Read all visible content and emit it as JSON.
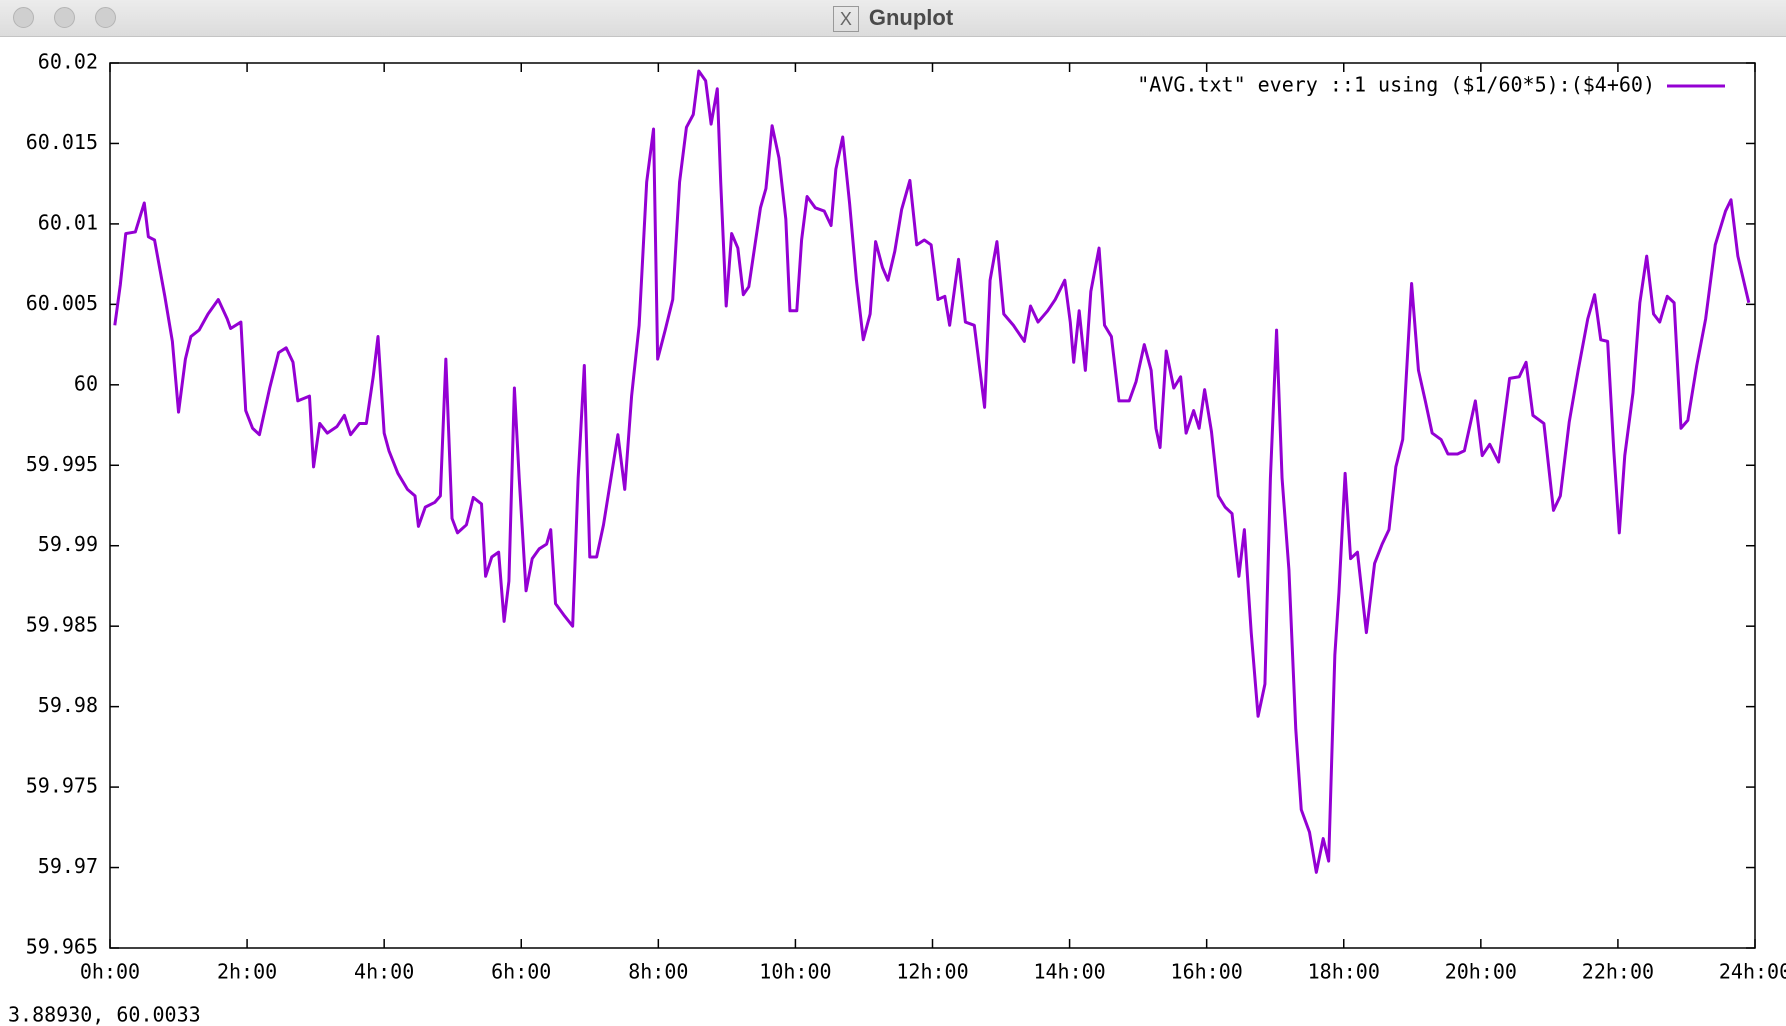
{
  "window": {
    "title": "Gnuplot",
    "status": "3.88930,  60.0033"
  },
  "chart_data": {
    "type": "line",
    "x": [
      0.07,
      0.15,
      0.23,
      0.37,
      0.5,
      0.56,
      0.65,
      0.8,
      0.91,
      1.0,
      1.1,
      1.18,
      1.3,
      1.43,
      1.58,
      1.71,
      1.76,
      1.91,
      1.98,
      2.08,
      2.18,
      2.33,
      2.46,
      2.57,
      2.67,
      2.74,
      2.91,
      2.97,
      3.06,
      3.17,
      3.31,
      3.42,
      3.51,
      3.64,
      3.74,
      3.84,
      3.91,
      4.0,
      4.07,
      4.2,
      4.34,
      4.45,
      4.5,
      4.6,
      4.74,
      4.82,
      4.9,
      4.99,
      5.07,
      5.2,
      5.3,
      5.42,
      5.48,
      5.57,
      5.67,
      5.75,
      5.82,
      5.9,
      5.97,
      6.07,
      6.16,
      6.26,
      6.37,
      6.43,
      6.5,
      6.62,
      6.75,
      6.83,
      6.92,
      7.0,
      7.1,
      7.2,
      7.32,
      7.41,
      7.51,
      7.61,
      7.72,
      7.83,
      7.93,
      7.99,
      8.1,
      8.21,
      8.31,
      8.41,
      8.51,
      8.59,
      8.69,
      8.77,
      8.86,
      8.91,
      8.99,
      9.07,
      9.16,
      9.24,
      9.32,
      9.41,
      9.49,
      9.57,
      9.66,
      9.76,
      9.86,
      9.92,
      10.02,
      10.09,
      10.17,
      10.29,
      10.42,
      10.52,
      10.59,
      10.69,
      10.79,
      10.89,
      10.99,
      11.09,
      11.17,
      11.27,
      11.35,
      11.45,
      11.55,
      11.67,
      11.77,
      11.88,
      11.98,
      12.08,
      12.18,
      12.25,
      12.38,
      12.48,
      12.61,
      12.76,
      12.84,
      12.94,
      13.04,
      13.18,
      13.34,
      13.43,
      13.54,
      13.68,
      13.79,
      13.93,
      14.01,
      14.06,
      14.14,
      14.23,
      14.31,
      14.43,
      14.51,
      14.61,
      14.72,
      14.87,
      14.97,
      15.09,
      15.19,
      15.26,
      15.32,
      15.41,
      15.52,
      15.62,
      15.7,
      15.81,
      15.89,
      15.97,
      16.07,
      16.17,
      16.27,
      16.37,
      16.47,
      16.55,
      16.65,
      16.75,
      16.85,
      16.93,
      17.02,
      17.1,
      17.2,
      17.3,
      17.38,
      17.5,
      17.6,
      17.7,
      17.78,
      17.87,
      17.93,
      18.02,
      18.1,
      18.2,
      18.33,
      18.45,
      18.56,
      18.66,
      18.76,
      18.86,
      18.99,
      19.09,
      19.19,
      19.29,
      19.42,
      19.52,
      19.66,
      19.76,
      19.92,
      20.02,
      20.13,
      20.26,
      20.42,
      20.56,
      20.66,
      20.76,
      20.92,
      21.06,
      21.16,
      21.29,
      21.42,
      21.56,
      21.66,
      21.75,
      21.85,
      21.94,
      22.02,
      22.1,
      22.22,
      22.32,
      22.42,
      22.52,
      22.61,
      22.72,
      22.82,
      22.92,
      23.02,
      23.15,
      23.28,
      23.42,
      23.57,
      23.65,
      23.75,
      23.91
    ],
    "series": [
      {
        "name": "\"AVG.txt\" every ::1 using ($1/60*5):($4+60)",
        "color": "#9400d3",
        "values": [
          60.0037,
          60.0062,
          60.0094,
          60.0095,
          60.0113,
          60.0092,
          60.009,
          60.0055,
          60.0027,
          59.9983,
          60.0016,
          60.003,
          60.0034,
          60.0044,
          60.0053,
          60.0041,
          60.0035,
          60.0039,
          59.9984,
          59.9973,
          59.9969,
          59.9998,
          60.002,
          60.0023,
          60.0014,
          59.999,
          59.9993,
          59.9949,
          59.9976,
          59.997,
          59.9974,
          59.9981,
          59.9969,
          59.9976,
          59.9976,
          60.0005,
          60.003,
          59.997,
          59.9959,
          59.9945,
          59.9935,
          59.9931,
          59.9912,
          59.9924,
          59.9927,
          59.9931,
          60.0016,
          59.9917,
          59.9908,
          59.9913,
          59.993,
          59.9926,
          59.9881,
          59.9893,
          59.9896,
          59.9853,
          59.9878,
          59.9998,
          59.9942,
          59.9872,
          59.9892,
          59.9898,
          59.9901,
          59.991,
          59.9864,
          59.9857,
          59.985,
          59.9942,
          60.0012,
          59.9893,
          59.9893,
          59.9913,
          59.9945,
          59.9969,
          59.9935,
          59.9993,
          60.0037,
          60.0126,
          60.0159,
          60.0016,
          60.0034,
          60.0053,
          60.0126,
          60.016,
          60.0168,
          60.0195,
          60.0189,
          60.0162,
          60.0184,
          60.0126,
          60.0049,
          60.0094,
          60.0085,
          60.0056,
          60.0061,
          60.0087,
          60.011,
          60.0122,
          60.0161,
          60.0141,
          60.0103,
          60.0046,
          60.0046,
          60.009,
          60.0117,
          60.011,
          60.0108,
          60.0099,
          60.0134,
          60.0154,
          60.0113,
          60.0065,
          60.0028,
          60.0044,
          60.0089,
          60.0073,
          60.0065,
          60.0083,
          60.0109,
          60.0127,
          60.0087,
          60.009,
          60.0087,
          60.0053,
          60.0055,
          60.0037,
          60.0078,
          60.0039,
          60.0037,
          59.9986,
          60.0065,
          60.0089,
          60.0044,
          60.0037,
          60.0027,
          60.0049,
          60.0039,
          60.0046,
          60.0053,
          60.0065,
          60.0039,
          60.0014,
          60.0046,
          60.0009,
          60.0058,
          60.0085,
          60.0037,
          60.003,
          59.999,
          59.999,
          60.0002,
          60.0025,
          60.0009,
          59.9973,
          59.9961,
          60.0021,
          59.9998,
          60.0005,
          59.997,
          59.9984,
          59.9973,
          59.9997,
          59.9971,
          59.9931,
          59.9924,
          59.992,
          59.9881,
          59.991,
          59.9846,
          59.9794,
          59.9814,
          59.9942,
          60.0034,
          59.9942,
          59.9885,
          59.9786,
          59.9736,
          59.9722,
          59.9697,
          59.9718,
          59.9704,
          59.9832,
          59.9871,
          59.9945,
          59.9892,
          59.9896,
          59.9846,
          59.9889,
          59.9901,
          59.991,
          59.9949,
          59.9966,
          60.0063,
          60.0009,
          59.999,
          59.997,
          59.9966,
          59.9957,
          59.9957,
          59.9959,
          59.999,
          59.9956,
          59.9963,
          59.9952,
          60.0004,
          60.0005,
          60.0014,
          59.9981,
          59.9976,
          59.9922,
          59.9931,
          59.9977,
          60.0009,
          60.0041,
          60.0056,
          60.0028,
          60.0027,
          59.9959,
          59.9908,
          59.9956,
          59.9995,
          60.0051,
          60.008,
          60.0044,
          60.0039,
          60.0055,
          60.0051,
          59.9973,
          59.9978,
          60.0012,
          60.0041,
          60.0087,
          60.0108,
          60.0115,
          60.008,
          60.0051
        ]
      }
    ],
    "xlim": [
      0,
      24
    ],
    "xticks": [
      {
        "value": 0,
        "label": "0h:00"
      },
      {
        "value": 2,
        "label": "2h:00"
      },
      {
        "value": 4,
        "label": "4h:00"
      },
      {
        "value": 6,
        "label": "6h:00"
      },
      {
        "value": 8,
        "label": "8h:00"
      },
      {
        "value": 10,
        "label": "10h:00"
      },
      {
        "value": 12,
        "label": "12h:00"
      },
      {
        "value": 14,
        "label": "14h:00"
      },
      {
        "value": 16,
        "label": "16h:00"
      },
      {
        "value": 18,
        "label": "18h:00"
      },
      {
        "value": 20,
        "label": "20h:00"
      },
      {
        "value": 22,
        "label": "22h:00"
      },
      {
        "value": 24,
        "label": "24h:00"
      }
    ],
    "ylim": [
      59.965,
      60.02
    ],
    "yticks": [
      59.965,
      59.97,
      59.975,
      59.98,
      59.985,
      59.99,
      59.995,
      60,
      60.005,
      60.01,
      60.015,
      60.02
    ],
    "grid": false,
    "legend": "top-right"
  }
}
